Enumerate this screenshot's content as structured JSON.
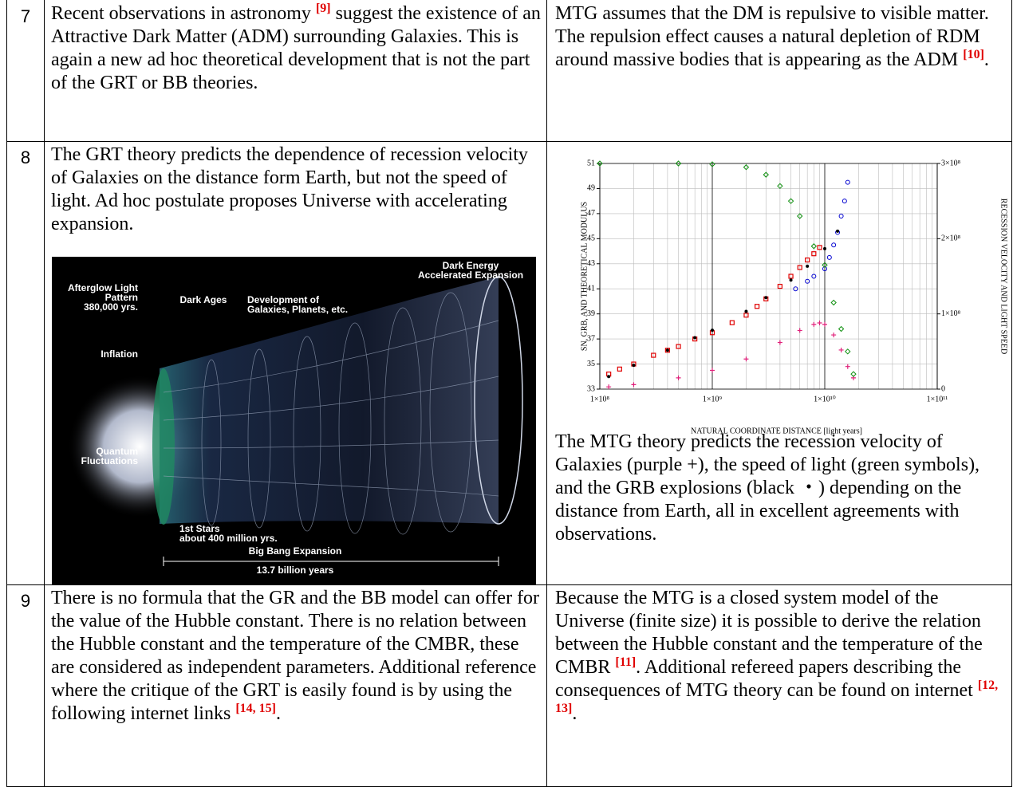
{
  "table": {
    "rows": [
      {
        "number": "7",
        "left": [
          {
            "text": "Recent observations in astronomy "
          },
          {
            "ref": "[9]"
          },
          {
            "text": " suggest the existence of an Attractive Dark Matter (ADM) surrounding Galaxies. This is again a new ad hoc theoretical development that is not the part of the GRT or BB theories."
          }
        ],
        "right": [
          {
            "text": "MTG assumes that the DM is repulsive to visible matter. The repulsion effect causes a natural depletion of RDM around massive bodies that is appearing as the ADM "
          },
          {
            "ref": "[10]"
          },
          {
            "text": "."
          }
        ]
      },
      {
        "number": "8",
        "left": [
          {
            "text": "The GRT theory predicts the dependence of recession velocity of Galaxies on the distance form Earth, but not the speed of light. Ad hoc postulate proposes Universe with accelerating expansion."
          }
        ],
        "right": [
          {
            "text": "The MTG theory predicts the recession velocity of Galaxies (purple +), the speed of light (green symbols), and the GRB explosions (black ・) depending on the distance from Earth, all in excellent agreements with observations."
          }
        ]
      },
      {
        "number": "9",
        "left": [
          {
            "text": "There is no formula that the GR and the BB model can offer for the value of the Hubble constant. There is no relation between the Hubble constant and the temperature of the CMBR, these are considered as independent parameters. Additional reference where the critique of the GRT is easily found is by using the following internet links "
          },
          {
            "ref": "[14, 15]"
          },
          {
            "text": "."
          }
        ],
        "right": [
          {
            "text": "Because the MTG is a closed system model of the Universe (finite size) it is possible to derive the relation between the Hubble constant and the temperature of the CMBR "
          },
          {
            "ref": "[11]"
          },
          {
            "text": ". Additional refereed papers describing the consequences of MTG theory can be found on internet "
          },
          {
            "ref": "[12, 13]"
          },
          {
            "text": "."
          }
        ]
      }
    ]
  },
  "illustration": {
    "labels": [
      [
        "Dark Energy",
        "Accelerated Expansion"
      ],
      [
        "Afterglow Light",
        "Pattern",
        "380,000 yrs."
      ],
      [
        "Dark Ages"
      ],
      [
        "Development of",
        "Galaxies, Planets, etc."
      ],
      [
        "Inflation"
      ],
      [
        "Quantum",
        "Fluctuations"
      ],
      [
        "1st Stars",
        "about 400 million yrs."
      ],
      [
        "Big Bang Expansion"
      ],
      [
        "13.7 billion years"
      ]
    ]
  },
  "chart_data": {
    "type": "scatter",
    "xlabel": "NATURAL COORDINATE DISTANCE [light years]",
    "ylabel": "SN, GRB, AND THEORETICAL MODULUS",
    "y2label": "RECESSION VELOCITY AND LIGHT SPEED",
    "xscale": "log",
    "xlim": [
      100000000,
      100000000000
    ],
    "xticks": [
      {
        "value": 100000000,
        "label": "1×10⁸"
      },
      {
        "value": 1000000000,
        "label": "1×10⁹"
      },
      {
        "value": 10000000000,
        "label": "1×10¹⁰"
      },
      {
        "value": 100000000000,
        "label": "1×10¹¹"
      }
    ],
    "ylim": [
      33,
      51
    ],
    "yticks": [
      33,
      35,
      37,
      39,
      41,
      43,
      45,
      47,
      49,
      51
    ],
    "y2lim": [
      0,
      300000000
    ],
    "y2ticks": [
      0,
      {
        "value": 100000000,
        "label": "1×10⁸"
      },
      {
        "value": 200000000,
        "label": "2×10⁸"
      },
      {
        "value": 300000000,
        "label": "3×10⁸"
      }
    ],
    "grid": true,
    "series": [
      {
        "color": "#e00000",
        "marker": "square",
        "x": [
          120000000,
          150000000,
          200000000,
          300000000,
          400000000,
          500000000,
          700000000,
          1000000000,
          1500000000,
          2000000000,
          2500000000,
          3000000000,
          4000000000,
          5000000000,
          6000000000,
          7000000000,
          8000000000,
          9000000000
        ],
        "values": [
          34.2,
          34.6,
          35,
          35.7,
          36.1,
          36.4,
          37,
          37.5,
          38.3,
          38.9,
          39.6,
          40.2,
          41.2,
          42,
          42.7,
          43.3,
          43.8,
          44.3
        ]
      },
      {
        "color": "#0000d0",
        "marker": "circle",
        "x": [
          5500000000,
          7000000000,
          8000000000,
          10000000000,
          11000000000,
          12000000000,
          13000000000,
          14000000000,
          15000000000,
          16000000000
        ],
        "values": [
          41,
          41.6,
          42,
          42.6,
          43.5,
          44.5,
          45.5,
          46.8,
          48,
          49.5
        ]
      },
      {
        "color": "#000000",
        "marker": "dot",
        "x": [
          120000000,
          200000000,
          400000000,
          700000000,
          1000000000,
          2000000000,
          3000000000,
          5000000000,
          7000000000,
          10000000000,
          13000000000
        ],
        "values": [
          34,
          34.9,
          36.1,
          37.1,
          37.7,
          39.2,
          40.3,
          41.7,
          42.8,
          44.2,
          45.6
        ]
      },
      {
        "color": "#e0207a",
        "marker": "plus",
        "axis": "y2",
        "x": [
          120000000,
          200000000,
          500000000,
          1000000000,
          2000000000,
          4000000000,
          6000000000,
          8000000000,
          9000000000,
          10000000000,
          12000000000,
          14000000000,
          16000000000,
          18000000000
        ],
        "values": [
          3000000,
          6000000,
          15000000,
          25000000,
          40000000,
          62000000,
          78000000,
          86000000,
          88000000,
          86000000,
          72000000,
          52000000,
          30000000,
          15000000
        ]
      },
      {
        "color": "#109010",
        "marker": "diamond",
        "axis": "y2",
        "x": [
          100000000,
          500000000,
          1000000000,
          2000000000,
          3000000000,
          4000000000,
          5000000000,
          6000000000,
          8000000000,
          10000000000,
          12000000000,
          14000000000,
          16000000000,
          18000000000
        ],
        "values": [
          300000000,
          300000000,
          299000000,
          295000000,
          285000000,
          270000000,
          250000000,
          230000000,
          190000000,
          165000000,
          115000000,
          80000000,
          50000000,
          20000000
        ]
      }
    ]
  }
}
